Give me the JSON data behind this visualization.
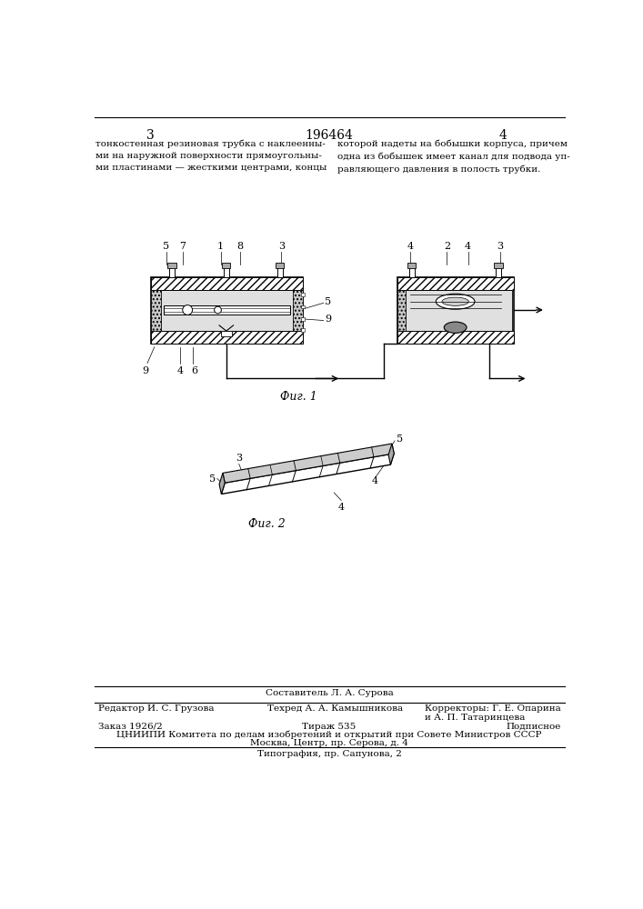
{
  "page_number_center": "196464",
  "page_number_left": "3",
  "page_number_right": "4",
  "text_left": "тонкостенная резиновая трубка с наклеенны-\nми на наружной поверхности прямоугольны-\nми пластинами — жесткими центрами, концы",
  "text_right": "которой надеты на бобышки корпуса, причем\nодна из бобышек имеет канал для подвода уп-\nравляющего давления в полость трубки.",
  "fig1_label": "Фиг. 1",
  "fig2_label": "Фиг. 2",
  "footer_composer": "Составитель Л. А. Сурова",
  "footer_editor": "Редактор И. С. Грузова",
  "footer_techred": "Техред А. А. Камышникова",
  "footer_correctors": "Корректоры: Г. Е. Опарина",
  "footer_correctors2": "и А. П. Татаринцева",
  "footer_order": "Заказ 1926/2",
  "footer_tirazh": "Тираж 535",
  "footer_podpisnoe": "Подписное",
  "footer_cniip": "ЦНИИПИ Комитета по делам изобретений и открытий при Совете Министров СССР",
  "footer_moscow": "Москва, Центр, пр. Серова, д. 4",
  "footer_tipografia": "Типография, пр. Сапунова, 2",
  "bg": "#ffffff"
}
